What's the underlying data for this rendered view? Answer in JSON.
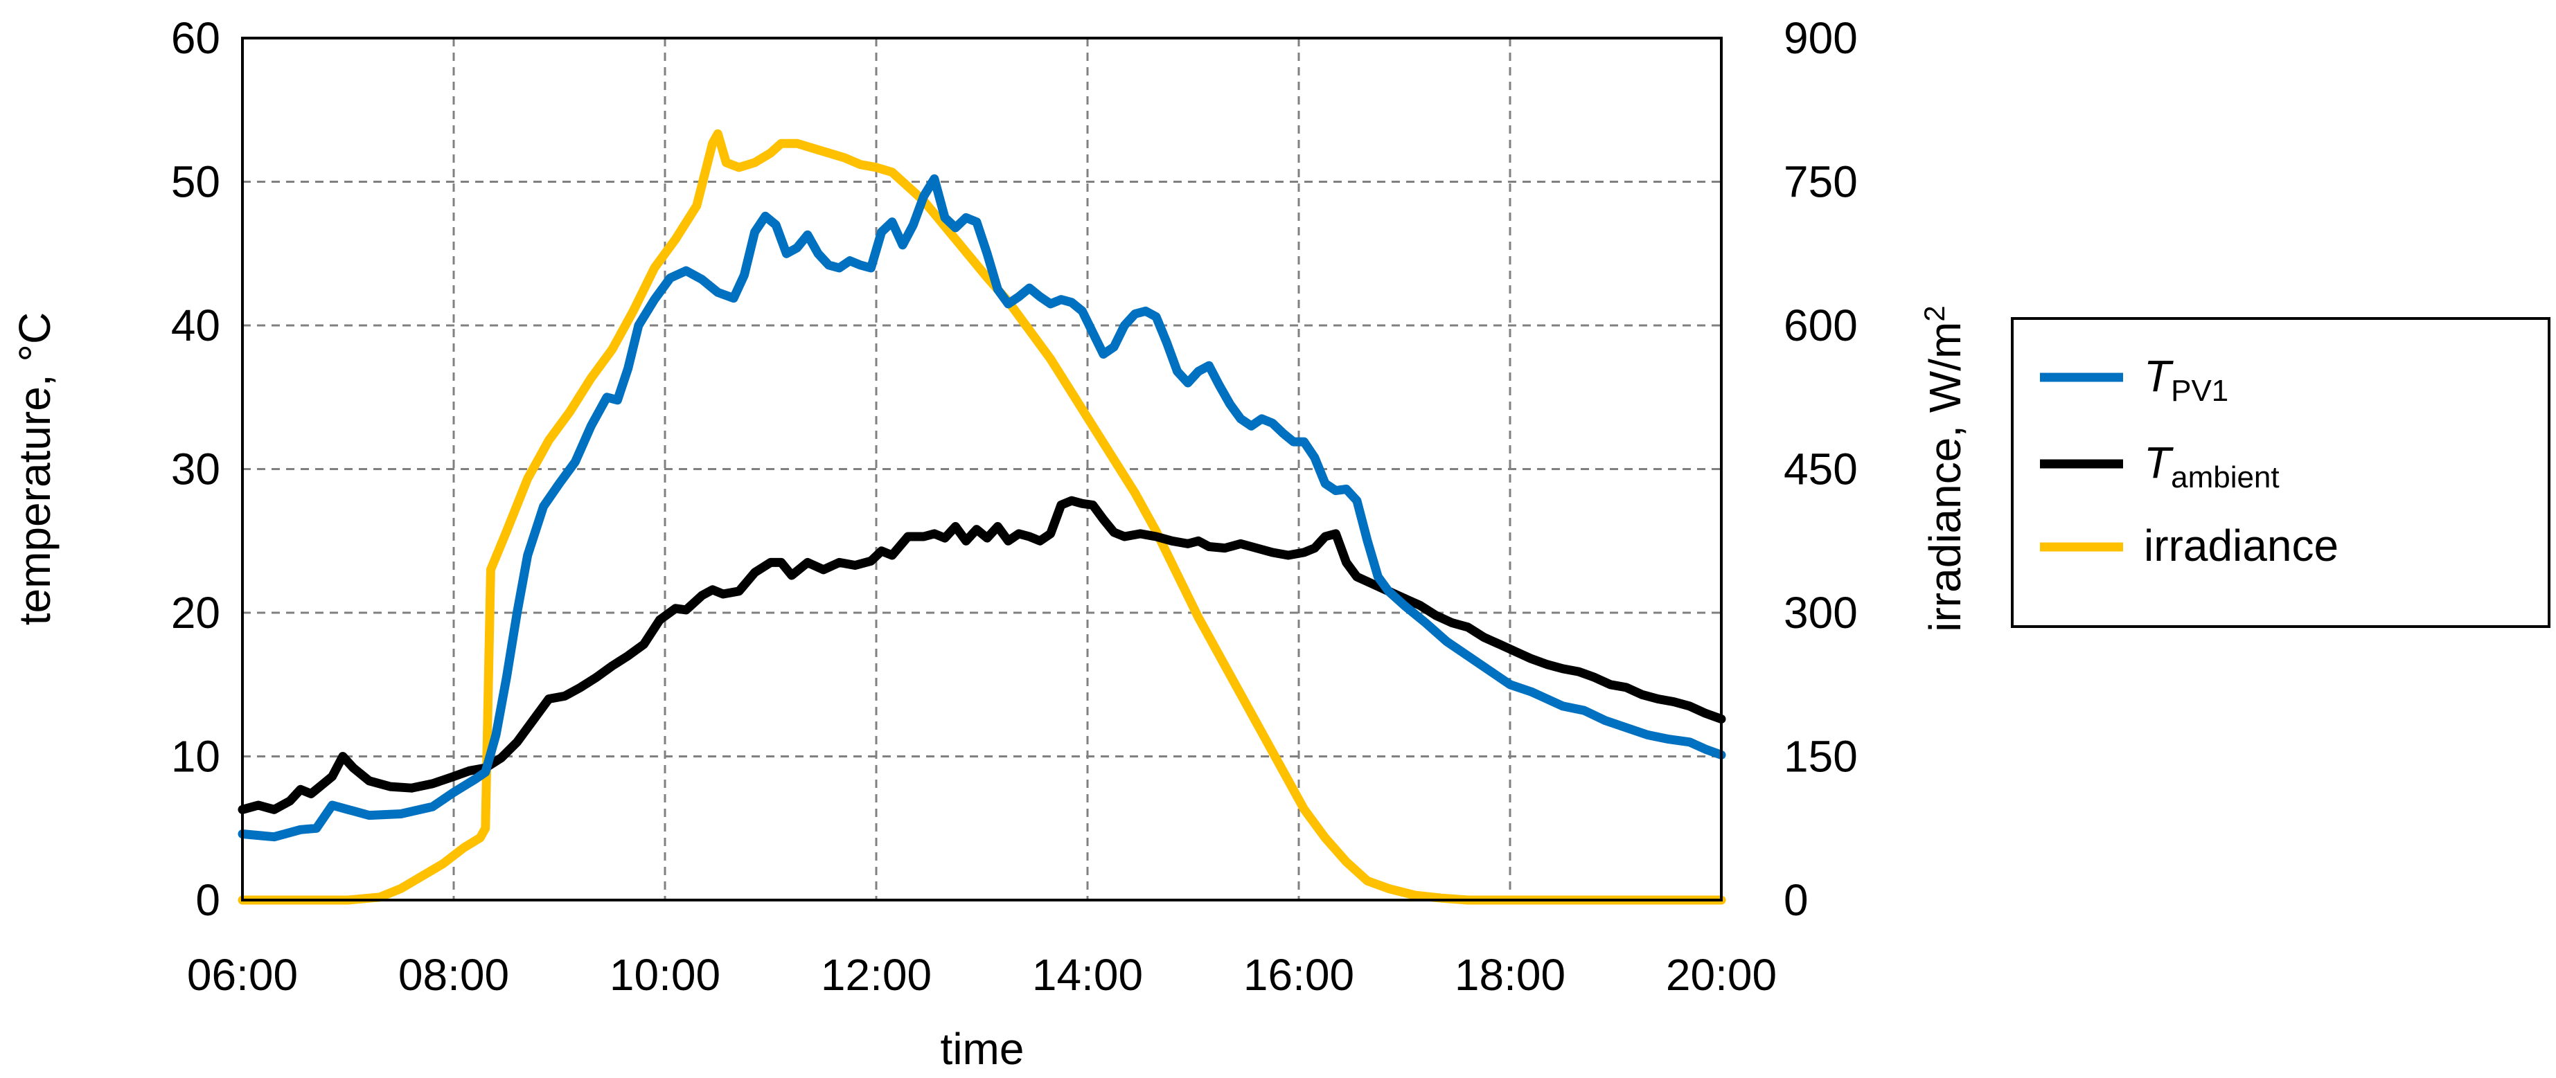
{
  "chart_data": {
    "type": "line",
    "xlabel": "time",
    "ylabel": "temperature, °C",
    "y2label_main": "irradiance, W/m",
    "y2label_sup": "2",
    "xlim": [
      6,
      20
    ],
    "ylim": [
      0,
      60
    ],
    "y2lim": [
      0,
      900
    ],
    "grid": true,
    "legend_position": "right",
    "x_ticks": [
      "06:00",
      "08:00",
      "10:00",
      "12:00",
      "14:00",
      "16:00",
      "18:00",
      "20:00"
    ],
    "x_tick_hours": [
      6,
      8,
      10,
      12,
      14,
      16,
      18,
      20
    ],
    "y_ticks": [
      "0",
      "10",
      "20",
      "30",
      "40",
      "50",
      "60"
    ],
    "y_tick_values": [
      0,
      10,
      20,
      30,
      40,
      50,
      60
    ],
    "y2_ticks": [
      "0",
      "150",
      "300",
      "450",
      "600",
      "750",
      "900"
    ],
    "y2_tick_values": [
      0,
      150,
      300,
      450,
      600,
      750,
      900
    ],
    "series": [
      {
        "name": "T",
        "name_sub": "PV1",
        "axis": "left",
        "color": "#0070C0",
        "points": [
          [
            6.0,
            4.6
          ],
          [
            6.3,
            4.4
          ],
          [
            6.55,
            4.9
          ],
          [
            6.7,
            5.0
          ],
          [
            6.85,
            6.6
          ],
          [
            7.0,
            6.3
          ],
          [
            7.2,
            5.9
          ],
          [
            7.5,
            6.0
          ],
          [
            7.8,
            6.5
          ],
          [
            8.0,
            7.5
          ],
          [
            8.2,
            8.4
          ],
          [
            8.3,
            8.9
          ],
          [
            8.4,
            11.5
          ],
          [
            8.5,
            15.5
          ],
          [
            8.6,
            20.0
          ],
          [
            8.7,
            24.0
          ],
          [
            8.85,
            27.4
          ],
          [
            9.0,
            29.0
          ],
          [
            9.15,
            30.5
          ],
          [
            9.3,
            33.0
          ],
          [
            9.45,
            35.0
          ],
          [
            9.55,
            34.8
          ],
          [
            9.65,
            37.0
          ],
          [
            9.75,
            40.0
          ],
          [
            9.9,
            41.8
          ],
          [
            10.05,
            43.3
          ],
          [
            10.2,
            43.8
          ],
          [
            10.35,
            43.2
          ],
          [
            10.5,
            42.3
          ],
          [
            10.65,
            41.9
          ],
          [
            10.75,
            43.5
          ],
          [
            10.85,
            46.5
          ],
          [
            10.95,
            47.6
          ],
          [
            11.05,
            47.0
          ],
          [
            11.15,
            45.0
          ],
          [
            11.25,
            45.4
          ],
          [
            11.35,
            46.3
          ],
          [
            11.45,
            45.0
          ],
          [
            11.55,
            44.2
          ],
          [
            11.65,
            44.0
          ],
          [
            11.75,
            44.5
          ],
          [
            11.85,
            44.2
          ],
          [
            11.95,
            44.0
          ],
          [
            12.05,
            46.5
          ],
          [
            12.15,
            47.2
          ],
          [
            12.25,
            45.6
          ],
          [
            12.35,
            47.0
          ],
          [
            12.45,
            49.0
          ],
          [
            12.55,
            50.2
          ],
          [
            12.65,
            47.5
          ],
          [
            12.75,
            46.8
          ],
          [
            12.85,
            47.5
          ],
          [
            12.95,
            47.2
          ],
          [
            13.05,
            45.0
          ],
          [
            13.15,
            42.5
          ],
          [
            13.25,
            41.5
          ],
          [
            13.35,
            42.0
          ],
          [
            13.45,
            42.6
          ],
          [
            13.55,
            42.0
          ],
          [
            13.65,
            41.5
          ],
          [
            13.75,
            41.8
          ],
          [
            13.85,
            41.6
          ],
          [
            13.95,
            41.0
          ],
          [
            14.05,
            39.5
          ],
          [
            14.15,
            38.0
          ],
          [
            14.25,
            38.5
          ],
          [
            14.35,
            40.0
          ],
          [
            14.45,
            40.8
          ],
          [
            14.55,
            41.0
          ],
          [
            14.65,
            40.6
          ],
          [
            14.75,
            38.8
          ],
          [
            14.85,
            36.8
          ],
          [
            14.95,
            36.0
          ],
          [
            15.05,
            36.8
          ],
          [
            15.15,
            37.2
          ],
          [
            15.25,
            35.8
          ],
          [
            15.35,
            34.5
          ],
          [
            15.45,
            33.5
          ],
          [
            15.55,
            33.0
          ],
          [
            15.65,
            33.5
          ],
          [
            15.75,
            33.2
          ],
          [
            15.85,
            32.5
          ],
          [
            15.95,
            31.9
          ],
          [
            16.05,
            31.9
          ],
          [
            16.15,
            30.8
          ],
          [
            16.25,
            29.0
          ],
          [
            16.35,
            28.5
          ],
          [
            16.45,
            28.6
          ],
          [
            16.55,
            27.8
          ],
          [
            16.65,
            25.0
          ],
          [
            16.75,
            22.5
          ],
          [
            16.85,
            21.5
          ],
          [
            17.0,
            20.5
          ],
          [
            17.2,
            19.3
          ],
          [
            17.4,
            18.0
          ],
          [
            17.6,
            17.0
          ],
          [
            17.8,
            16.0
          ],
          [
            18.0,
            15.0
          ],
          [
            18.2,
            14.5
          ],
          [
            18.35,
            14.0
          ],
          [
            18.5,
            13.5
          ],
          [
            18.7,
            13.2
          ],
          [
            18.9,
            12.5
          ],
          [
            19.1,
            12.0
          ],
          [
            19.3,
            11.5
          ],
          [
            19.5,
            11.2
          ],
          [
            19.7,
            11.0
          ],
          [
            19.85,
            10.5
          ],
          [
            20.0,
            10.1
          ]
        ]
      },
      {
        "name": "T",
        "name_sub": "ambient",
        "axis": "left",
        "color": "#000000",
        "points": [
          [
            6.0,
            6.3
          ],
          [
            6.15,
            6.6
          ],
          [
            6.3,
            6.3
          ],
          [
            6.45,
            6.9
          ],
          [
            6.55,
            7.7
          ],
          [
            6.65,
            7.4
          ],
          [
            6.75,
            8.0
          ],
          [
            6.85,
            8.6
          ],
          [
            6.95,
            10.0
          ],
          [
            7.05,
            9.2
          ],
          [
            7.2,
            8.3
          ],
          [
            7.4,
            7.9
          ],
          [
            7.6,
            7.8
          ],
          [
            7.8,
            8.1
          ],
          [
            8.0,
            8.6
          ],
          [
            8.15,
            9.0
          ],
          [
            8.3,
            9.2
          ],
          [
            8.45,
            9.9
          ],
          [
            8.6,
            11.0
          ],
          [
            8.75,
            12.5
          ],
          [
            8.9,
            14.0
          ],
          [
            9.05,
            14.2
          ],
          [
            9.2,
            14.8
          ],
          [
            9.35,
            15.5
          ],
          [
            9.5,
            16.3
          ],
          [
            9.65,
            17.0
          ],
          [
            9.8,
            17.8
          ],
          [
            9.95,
            19.5
          ],
          [
            10.1,
            20.3
          ],
          [
            10.2,
            20.2
          ],
          [
            10.35,
            21.2
          ],
          [
            10.45,
            21.6
          ],
          [
            10.55,
            21.3
          ],
          [
            10.7,
            21.5
          ],
          [
            10.85,
            22.8
          ],
          [
            11.0,
            23.5
          ],
          [
            11.1,
            23.5
          ],
          [
            11.2,
            22.6
          ],
          [
            11.35,
            23.5
          ],
          [
            11.5,
            23.0
          ],
          [
            11.65,
            23.5
          ],
          [
            11.8,
            23.3
          ],
          [
            11.95,
            23.6
          ],
          [
            12.05,
            24.3
          ],
          [
            12.15,
            24.0
          ],
          [
            12.3,
            25.3
          ],
          [
            12.45,
            25.3
          ],
          [
            12.55,
            25.5
          ],
          [
            12.65,
            25.2
          ],
          [
            12.75,
            26.0
          ],
          [
            12.85,
            25.0
          ],
          [
            12.95,
            25.8
          ],
          [
            13.05,
            25.2
          ],
          [
            13.15,
            26.0
          ],
          [
            13.25,
            25.0
          ],
          [
            13.35,
            25.5
          ],
          [
            13.45,
            25.3
          ],
          [
            13.55,
            25.0
          ],
          [
            13.65,
            25.5
          ],
          [
            13.75,
            27.5
          ],
          [
            13.85,
            27.8
          ],
          [
            13.95,
            27.6
          ],
          [
            14.05,
            27.5
          ],
          [
            14.15,
            26.5
          ],
          [
            14.25,
            25.6
          ],
          [
            14.35,
            25.3
          ],
          [
            14.5,
            25.5
          ],
          [
            14.65,
            25.3
          ],
          [
            14.8,
            25.0
          ],
          [
            14.95,
            24.8
          ],
          [
            15.05,
            25.0
          ],
          [
            15.15,
            24.6
          ],
          [
            15.3,
            24.5
          ],
          [
            15.45,
            24.8
          ],
          [
            15.6,
            24.5
          ],
          [
            15.75,
            24.2
          ],
          [
            15.9,
            24.0
          ],
          [
            16.05,
            24.2
          ],
          [
            16.15,
            24.5
          ],
          [
            16.25,
            25.3
          ],
          [
            16.35,
            25.5
          ],
          [
            16.45,
            23.5
          ],
          [
            16.55,
            22.5
          ],
          [
            16.7,
            22.0
          ],
          [
            16.85,
            21.5
          ],
          [
            17.0,
            21.0
          ],
          [
            17.15,
            20.5
          ],
          [
            17.3,
            19.8
          ],
          [
            17.45,
            19.3
          ],
          [
            17.6,
            19.0
          ],
          [
            17.75,
            18.3
          ],
          [
            17.9,
            17.8
          ],
          [
            18.05,
            17.3
          ],
          [
            18.2,
            16.8
          ],
          [
            18.35,
            16.4
          ],
          [
            18.5,
            16.1
          ],
          [
            18.65,
            15.9
          ],
          [
            18.8,
            15.5
          ],
          [
            18.95,
            15.0
          ],
          [
            19.1,
            14.8
          ],
          [
            19.25,
            14.3
          ],
          [
            19.4,
            14.0
          ],
          [
            19.55,
            13.8
          ],
          [
            19.7,
            13.5
          ],
          [
            19.85,
            13.0
          ],
          [
            20.0,
            12.6
          ]
        ]
      },
      {
        "name": "irradiance",
        "axis": "right",
        "color": "#FFC000",
        "points": [
          [
            6.0,
            0
          ],
          [
            7.0,
            0
          ],
          [
            7.3,
            3
          ],
          [
            7.5,
            12
          ],
          [
            7.7,
            25
          ],
          [
            7.9,
            38
          ],
          [
            8.1,
            55
          ],
          [
            8.25,
            65
          ],
          [
            8.3,
            75
          ],
          [
            8.35,
            345
          ],
          [
            8.5,
            385
          ],
          [
            8.7,
            440
          ],
          [
            8.9,
            480
          ],
          [
            9.1,
            510
          ],
          [
            9.3,
            545
          ],
          [
            9.5,
            575
          ],
          [
            9.7,
            615
          ],
          [
            9.9,
            660
          ],
          [
            10.1,
            690
          ],
          [
            10.3,
            725
          ],
          [
            10.45,
            790
          ],
          [
            10.5,
            800
          ],
          [
            10.58,
            770
          ],
          [
            10.7,
            765
          ],
          [
            10.85,
            770
          ],
          [
            11.0,
            780
          ],
          [
            11.1,
            790
          ],
          [
            11.25,
            790
          ],
          [
            11.4,
            785
          ],
          [
            11.55,
            780
          ],
          [
            11.7,
            775
          ],
          [
            11.85,
            768
          ],
          [
            12.0,
            765
          ],
          [
            12.15,
            760
          ],
          [
            12.3,
            745
          ],
          [
            12.45,
            730
          ],
          [
            12.6,
            710
          ],
          [
            12.75,
            690
          ],
          [
            12.9,
            670
          ],
          [
            13.05,
            650
          ],
          [
            13.25,
            625
          ],
          [
            13.45,
            595
          ],
          [
            13.65,
            565
          ],
          [
            13.85,
            530
          ],
          [
            14.05,
            495
          ],
          [
            14.25,
            460
          ],
          [
            14.45,
            425
          ],
          [
            14.65,
            385
          ],
          [
            14.85,
            340
          ],
          [
            15.05,
            295
          ],
          [
            15.25,
            255
          ],
          [
            15.45,
            215
          ],
          [
            15.65,
            175
          ],
          [
            15.85,
            135
          ],
          [
            16.05,
            95
          ],
          [
            16.25,
            65
          ],
          [
            16.45,
            40
          ],
          [
            16.65,
            20
          ],
          [
            16.85,
            12
          ],
          [
            17.1,
            5
          ],
          [
            17.35,
            2
          ],
          [
            17.6,
            0
          ],
          [
            20.0,
            0
          ]
        ]
      }
    ]
  }
}
